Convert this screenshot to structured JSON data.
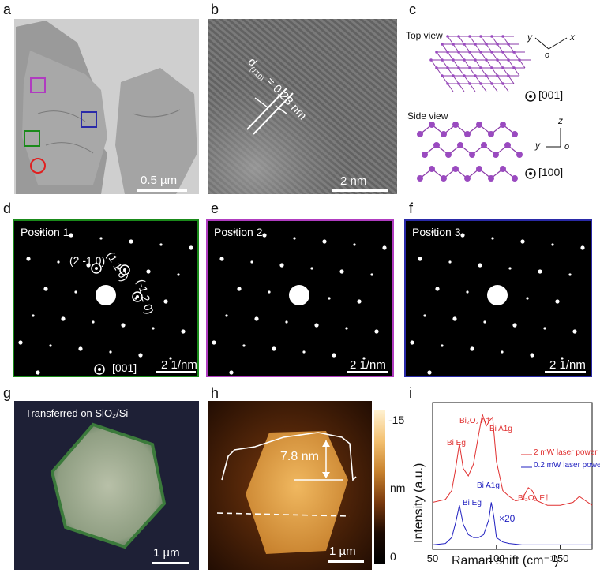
{
  "labels": {
    "a": "a",
    "b": "b",
    "c": "c",
    "d": "d",
    "e": "e",
    "f": "f",
    "g": "g",
    "h": "h",
    "i": "i"
  },
  "a": {
    "scale": "0.5 µm"
  },
  "b": {
    "d_label_prefix": "d",
    "d_label_sub": "(1̄10)",
    "d_label_rest": " = 0.23 nm",
    "scale": "2 nm"
  },
  "c": {
    "top_view": "Top view",
    "side_view": "Side view",
    "axis_y": "y",
    "axis_x": "x",
    "axis_o": "o",
    "axis_z": "z",
    "dir_top": "[001]",
    "dir_side": "[100]"
  },
  "d": {
    "position": "Position 1",
    "idx1": "(2 -1 0)",
    "idx2": "(1 1 0)",
    "idx3": "(-1 2 0)",
    "zone": "[001]",
    "scale": "2 1/nm",
    "border": "#1a8a1a"
  },
  "e": {
    "position": "Position 2",
    "scale": "2 1/nm",
    "border": "#b03cc0"
  },
  "f": {
    "position": "Position 3",
    "scale": "2 1/nm",
    "border": "#2a2aa8"
  },
  "g": {
    "caption": "Transferred on SiO₂/Si",
    "scale": "1 µm"
  },
  "h": {
    "height": "7.8 nm",
    "cbar_top": "-15",
    "cbar_unit": "nm",
    "cbar_bottom": "0",
    "scale": "1 µm"
  },
  "i": {
    "ylabel": "Intensity (a.u.)",
    "xlabel": "Raman shift (cm⁻¹)",
    "xticks": [
      "50",
      "100",
      "150"
    ],
    "legend": [
      "2 mW laser power",
      "0.2 mW laser power"
    ],
    "peaks_red": [
      "Bi Eg",
      "Bi₂O₃ A†",
      "Bi A1g",
      "Bi₂O₃ E†"
    ],
    "peaks_blue": [
      "Bi Eg",
      "Bi A1g"
    ],
    "scale_factor": "×20",
    "colors": {
      "red": "#e03030",
      "blue": "#2020c0"
    }
  },
  "chart_data": {
    "type": "line",
    "xlabel": "Raman shift (cm⁻¹)",
    "ylabel": "Intensity (a.u.)",
    "xlim": [
      50,
      175
    ],
    "series": [
      {
        "name": "2 mW laser power",
        "x": [
          50,
          60,
          65,
          68,
          71,
          74,
          78,
          82,
          86,
          89,
          92,
          95,
          97,
          100,
          105,
          110,
          115,
          120,
          125,
          128,
          132,
          140,
          150,
          160,
          165,
          170,
          175
        ],
        "values": [
          0.32,
          0.34,
          0.4,
          0.55,
          0.72,
          0.55,
          0.5,
          0.58,
          0.78,
          0.92,
          0.84,
          0.88,
          0.9,
          0.6,
          0.4,
          0.36,
          0.33,
          0.34,
          0.42,
          0.4,
          0.33,
          0.3,
          0.3,
          0.32,
          0.36,
          0.33,
          0.3
        ]
      },
      {
        "name": "0.2 mW laser power",
        "x": [
          50,
          60,
          65,
          68,
          71,
          74,
          78,
          82,
          86,
          90,
          94,
          96,
          98,
          100,
          105,
          110,
          120,
          130,
          140,
          150,
          160,
          175
        ],
        "values": [
          0.03,
          0.04,
          0.08,
          0.18,
          0.3,
          0.17,
          0.1,
          0.08,
          0.08,
          0.1,
          0.2,
          0.32,
          0.22,
          0.08,
          0.05,
          0.04,
          0.03,
          0.03,
          0.03,
          0.03,
          0.03,
          0.03
        ]
      }
    ]
  }
}
